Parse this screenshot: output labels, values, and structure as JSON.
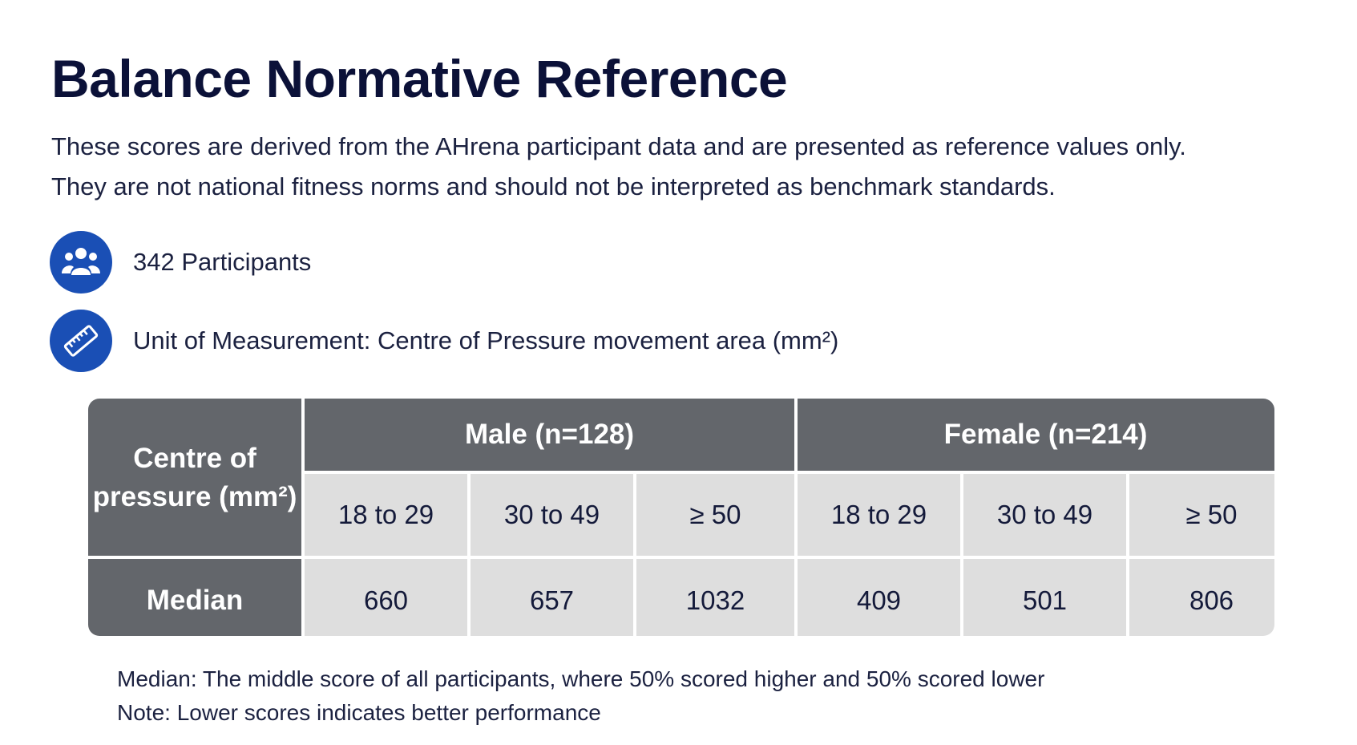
{
  "page": {
    "title": "Balance Normative Reference",
    "subtitle": "These scores are derived from the AHrena participant data and are presented as reference values only. They are not national fitness norms and should not be interpreted as benchmark standards."
  },
  "info": {
    "participants": {
      "icon": "people-group-icon",
      "text": "342 Participants"
    },
    "unit": {
      "icon": "ruler-icon",
      "text": "Unit of Measurement: Centre of Pressure movement area (mm²)"
    }
  },
  "colors": {
    "title": "#0b1138",
    "icon_circle": "#1a4fb5",
    "header_fill": "#63666b",
    "cell_fill": "#dedede"
  },
  "table": {
    "corner_label": "Centre of pressure (mm²)",
    "groups": [
      {
        "label": "Male (n=128)"
      },
      {
        "label": "Female (n=214)"
      }
    ],
    "subheaders": [
      "18 to 29",
      "30 to 49",
      "≥ 50",
      "18 to 29",
      "30 to 49",
      "≥ 50"
    ],
    "row_label": "Median",
    "values": [
      "660",
      "657",
      "1032",
      "409",
      "501",
      "806"
    ]
  },
  "notes": [
    "Median: The middle score of all participants, where 50% scored higher and 50% scored lower",
    "Note: Lower scores indicates better performance"
  ]
}
